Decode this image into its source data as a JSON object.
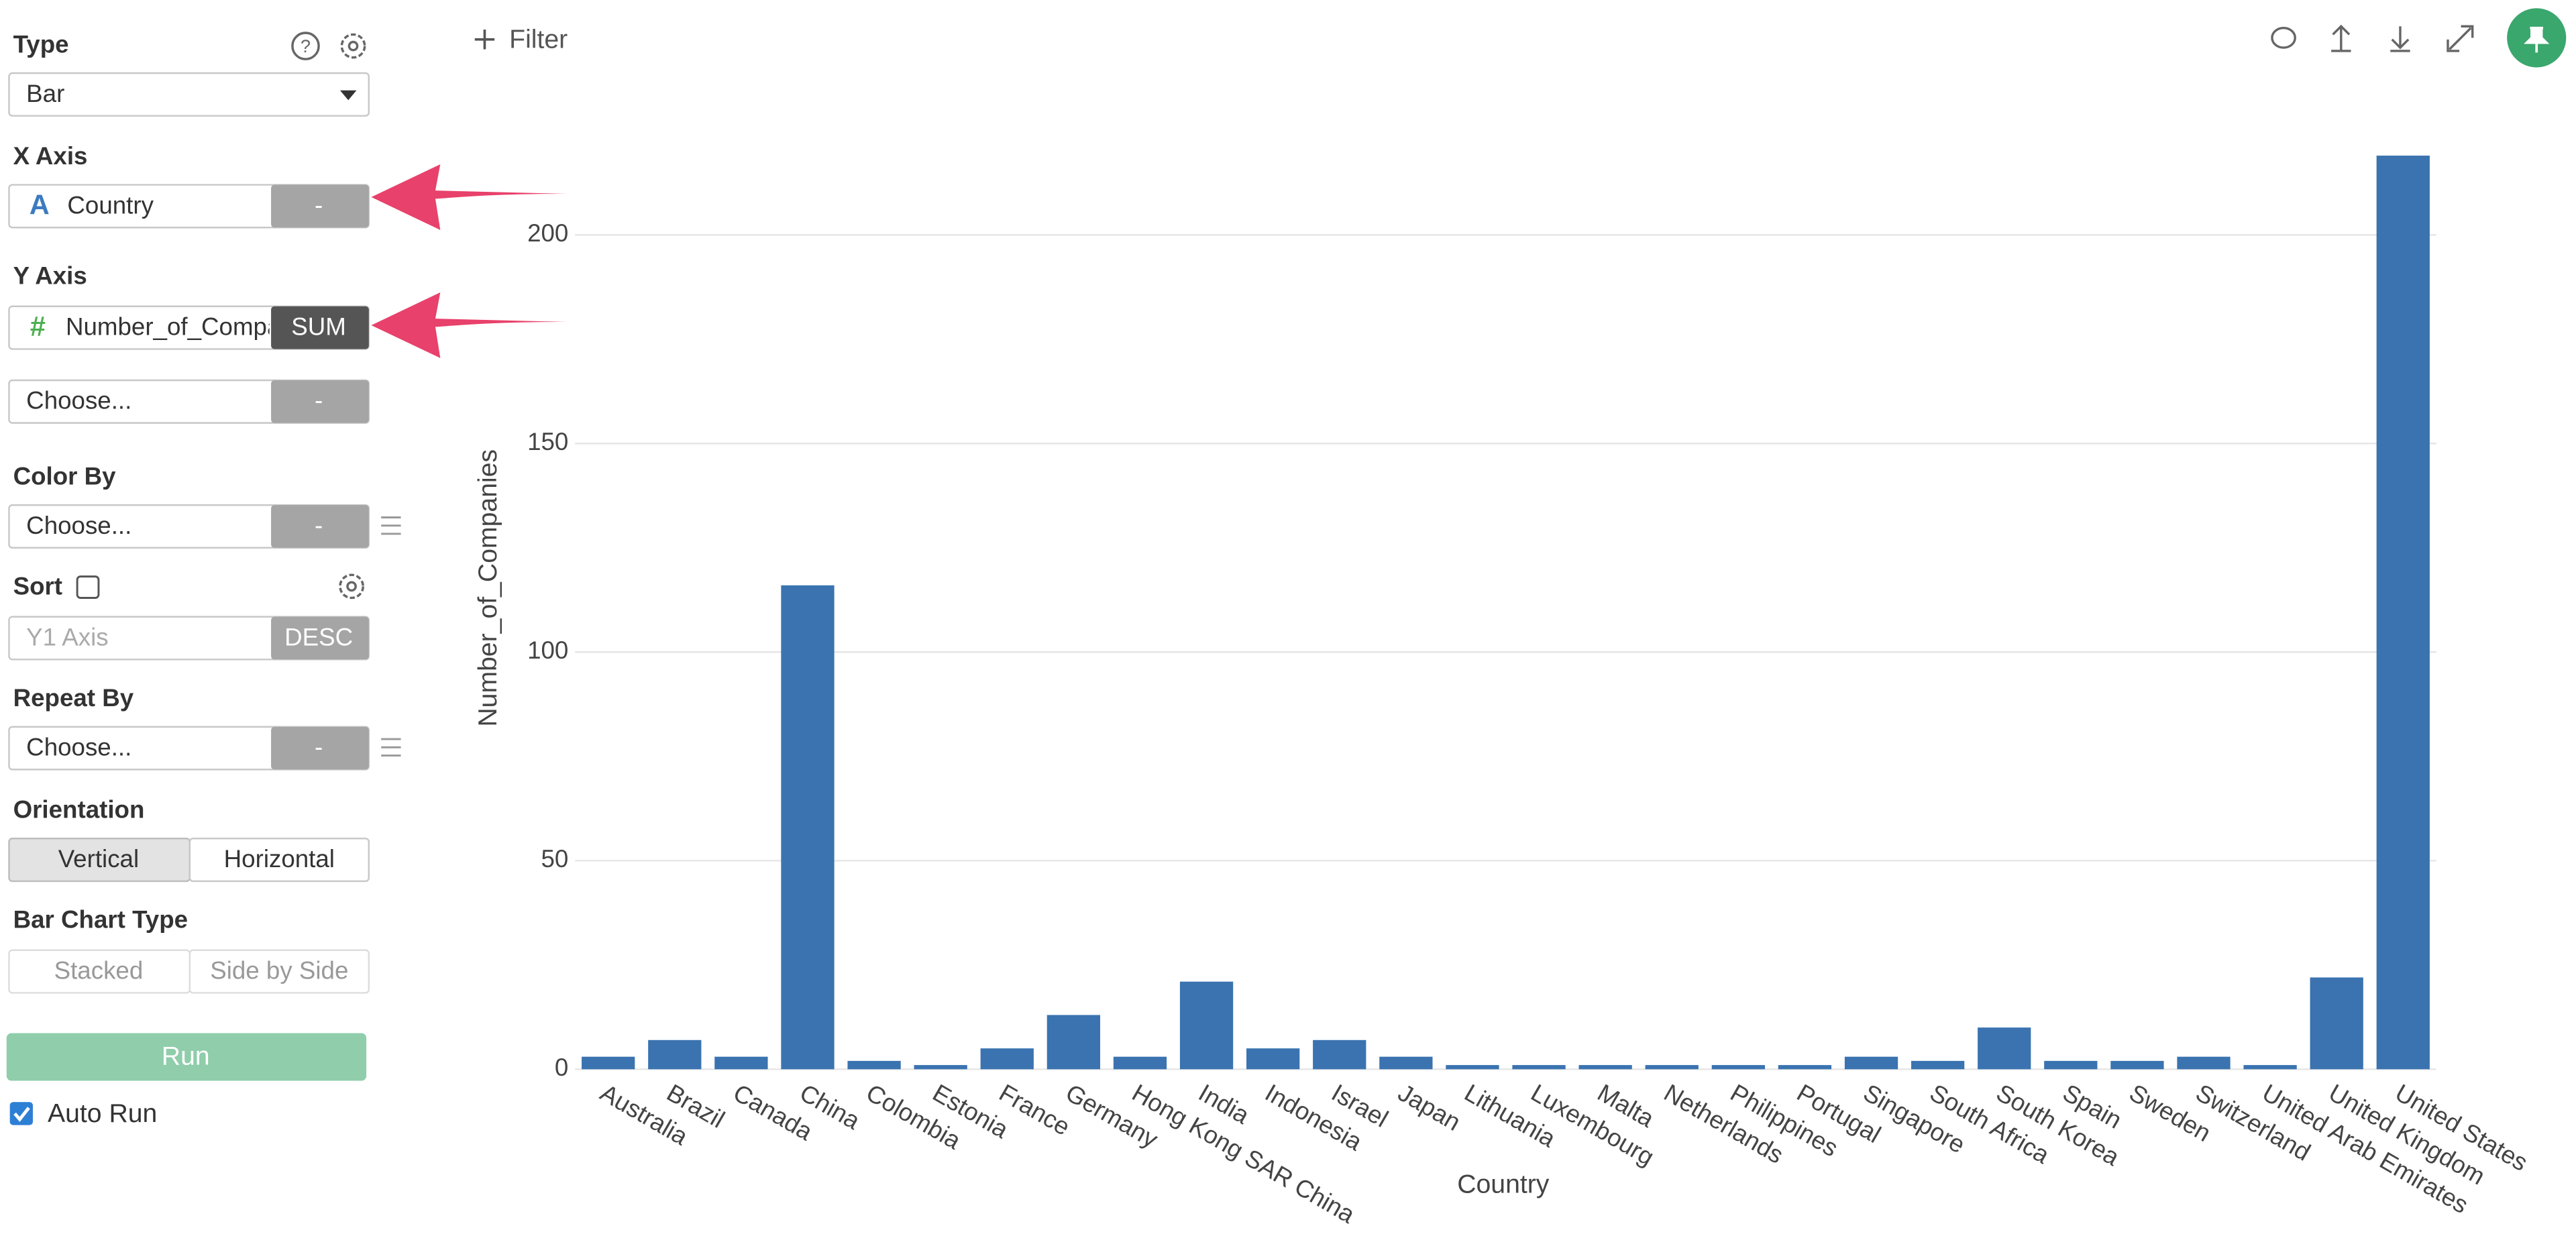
{
  "sidebar": {
    "type": {
      "label": "Type",
      "value": "Bar"
    },
    "x_axis": {
      "label": "X Axis",
      "icon": "A",
      "column": "Country",
      "aggregation": "-"
    },
    "y_axis": {
      "label": "Y Axis",
      "icon": "#",
      "column": "Number_of_Companies",
      "aggregation": "SUM",
      "second_column": "Choose...",
      "second_aggregation": "-"
    },
    "color_by": {
      "label": "Color By",
      "column": "Choose...",
      "aggregation": "-"
    },
    "sort": {
      "label": "Sort",
      "column": "Y1 Axis",
      "order": "DESC"
    },
    "repeat_by": {
      "label": "Repeat By",
      "column": "Choose...",
      "aggregation": "-"
    },
    "orientation": {
      "label": "Orientation",
      "options": [
        "Vertical",
        "Horizontal"
      ]
    },
    "bar_chart_type": {
      "label": "Bar Chart Type",
      "options": [
        "Stacked",
        "Side by Side"
      ]
    },
    "run": "Run",
    "auto_run": "Auto Run"
  },
  "toolbar": {
    "filter": "Filter"
  },
  "chart_data": {
    "type": "bar",
    "x_label": "Country",
    "y_label": "Number_of_Companies",
    "categories": [
      "Australia",
      "Brazil",
      "Canada",
      "China",
      "Colombia",
      "Estonia",
      "France",
      "Germany",
      "Hong Kong SAR China",
      "India",
      "Indonesia",
      "Israel",
      "Japan",
      "Lithuania",
      "Luxembourg",
      "Malta",
      "Netherlands",
      "Philippines",
      "Portugal",
      "Singapore",
      "South Africa",
      "South Korea",
      "Spain",
      "Sweden",
      "Switzerland",
      "United Arab Emirates",
      "United Kingdom",
      "United States"
    ],
    "values": [
      3,
      7,
      3,
      116,
      2,
      1,
      5,
      13,
      3,
      21,
      5,
      7,
      3,
      1,
      1,
      1,
      1,
      1,
      1,
      3,
      2,
      10,
      2,
      2,
      3,
      1,
      22,
      219
    ],
    "color": "#3a73b0",
    "ylim": [
      0,
      225
    ],
    "yticks": [
      0,
      50,
      100,
      150,
      200
    ],
    "grid": true
  }
}
